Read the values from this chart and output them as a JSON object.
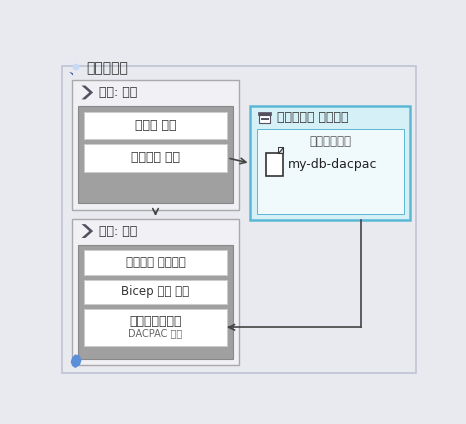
{
  "title": "파이프라인",
  "bg_color": "#e8eaf0",
  "outer_border_color": "#c0c4d4",
  "build_stage_label": "단계: 빌드",
  "build_task1": "컴파일 코드",
  "build_task2": "아티팩트 게시",
  "deploy_stage_label": "단계: 배포",
  "deploy_task1": "아티팩트 다운로드",
  "deploy_task2": "Bicep 파일 배포",
  "deploy_task3_line1": "데이터베이스에",
  "deploy_task3_line2": "DACPAC 배포",
  "artifact_label": "파이프라인 아티팩트",
  "artifact_bg": "#d6f0f8",
  "artifact_border": "#5bb8d4",
  "artifact_sublabel": "데이터베이스",
  "artifact_name": "my-db-dacpac",
  "task_bg": "#ffffff",
  "task_border": "#cccccc",
  "inner_gray": "#a0a0a0",
  "stage_border": "#aaaaaa",
  "stage_bg": "#f0f0f5"
}
